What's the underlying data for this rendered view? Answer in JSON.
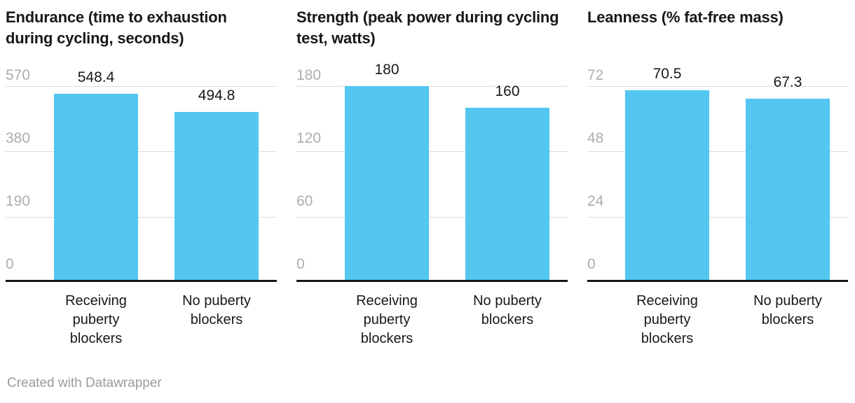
{
  "page": {
    "background": "#ffffff"
  },
  "colors": {
    "bar": "#53C7F0",
    "gridline": "#dcdcdc",
    "baseline": "#161616",
    "tick_label": "#adadad",
    "title_text": "#181818",
    "value_label": "#181818",
    "category_label": "#181818",
    "footer_text": "#9b9b9b"
  },
  "footer": {
    "credit": "Created with Datawrapper"
  },
  "chart_data": [
    {
      "type": "bar",
      "title": "Endurance (time to exhaustion during cycling, seconds)",
      "categories": [
        "Receiving puberty blockers",
        "No puberty blockers"
      ],
      "values": [
        548.4,
        494.8
      ],
      "yticks": [
        "570",
        "380",
        "190",
        "0"
      ],
      "ylim": [
        0,
        570
      ],
      "grid": "horizontal",
      "legend": "none",
      "value_labels_shown": true
    },
    {
      "type": "bar",
      "title": "Strength (peak power during cycling test, watts)",
      "categories": [
        "Receiving puberty blockers",
        "No puberty blockers"
      ],
      "values": [
        180,
        160
      ],
      "yticks": [
        "180",
        "120",
        "60",
        "0"
      ],
      "ylim": [
        0,
        180
      ],
      "grid": "horizontal",
      "legend": "none",
      "value_labels_shown": true
    },
    {
      "type": "bar",
      "title": "Leanness (% fat-free mass)",
      "categories": [
        "Receiving puberty blockers",
        "No puberty blockers"
      ],
      "values": [
        70.5,
        67.3
      ],
      "yticks": [
        "72",
        "48",
        "24",
        "0"
      ],
      "ylim": [
        0,
        72
      ],
      "grid": "horizontal",
      "legend": "none",
      "value_labels_shown": true
    }
  ]
}
